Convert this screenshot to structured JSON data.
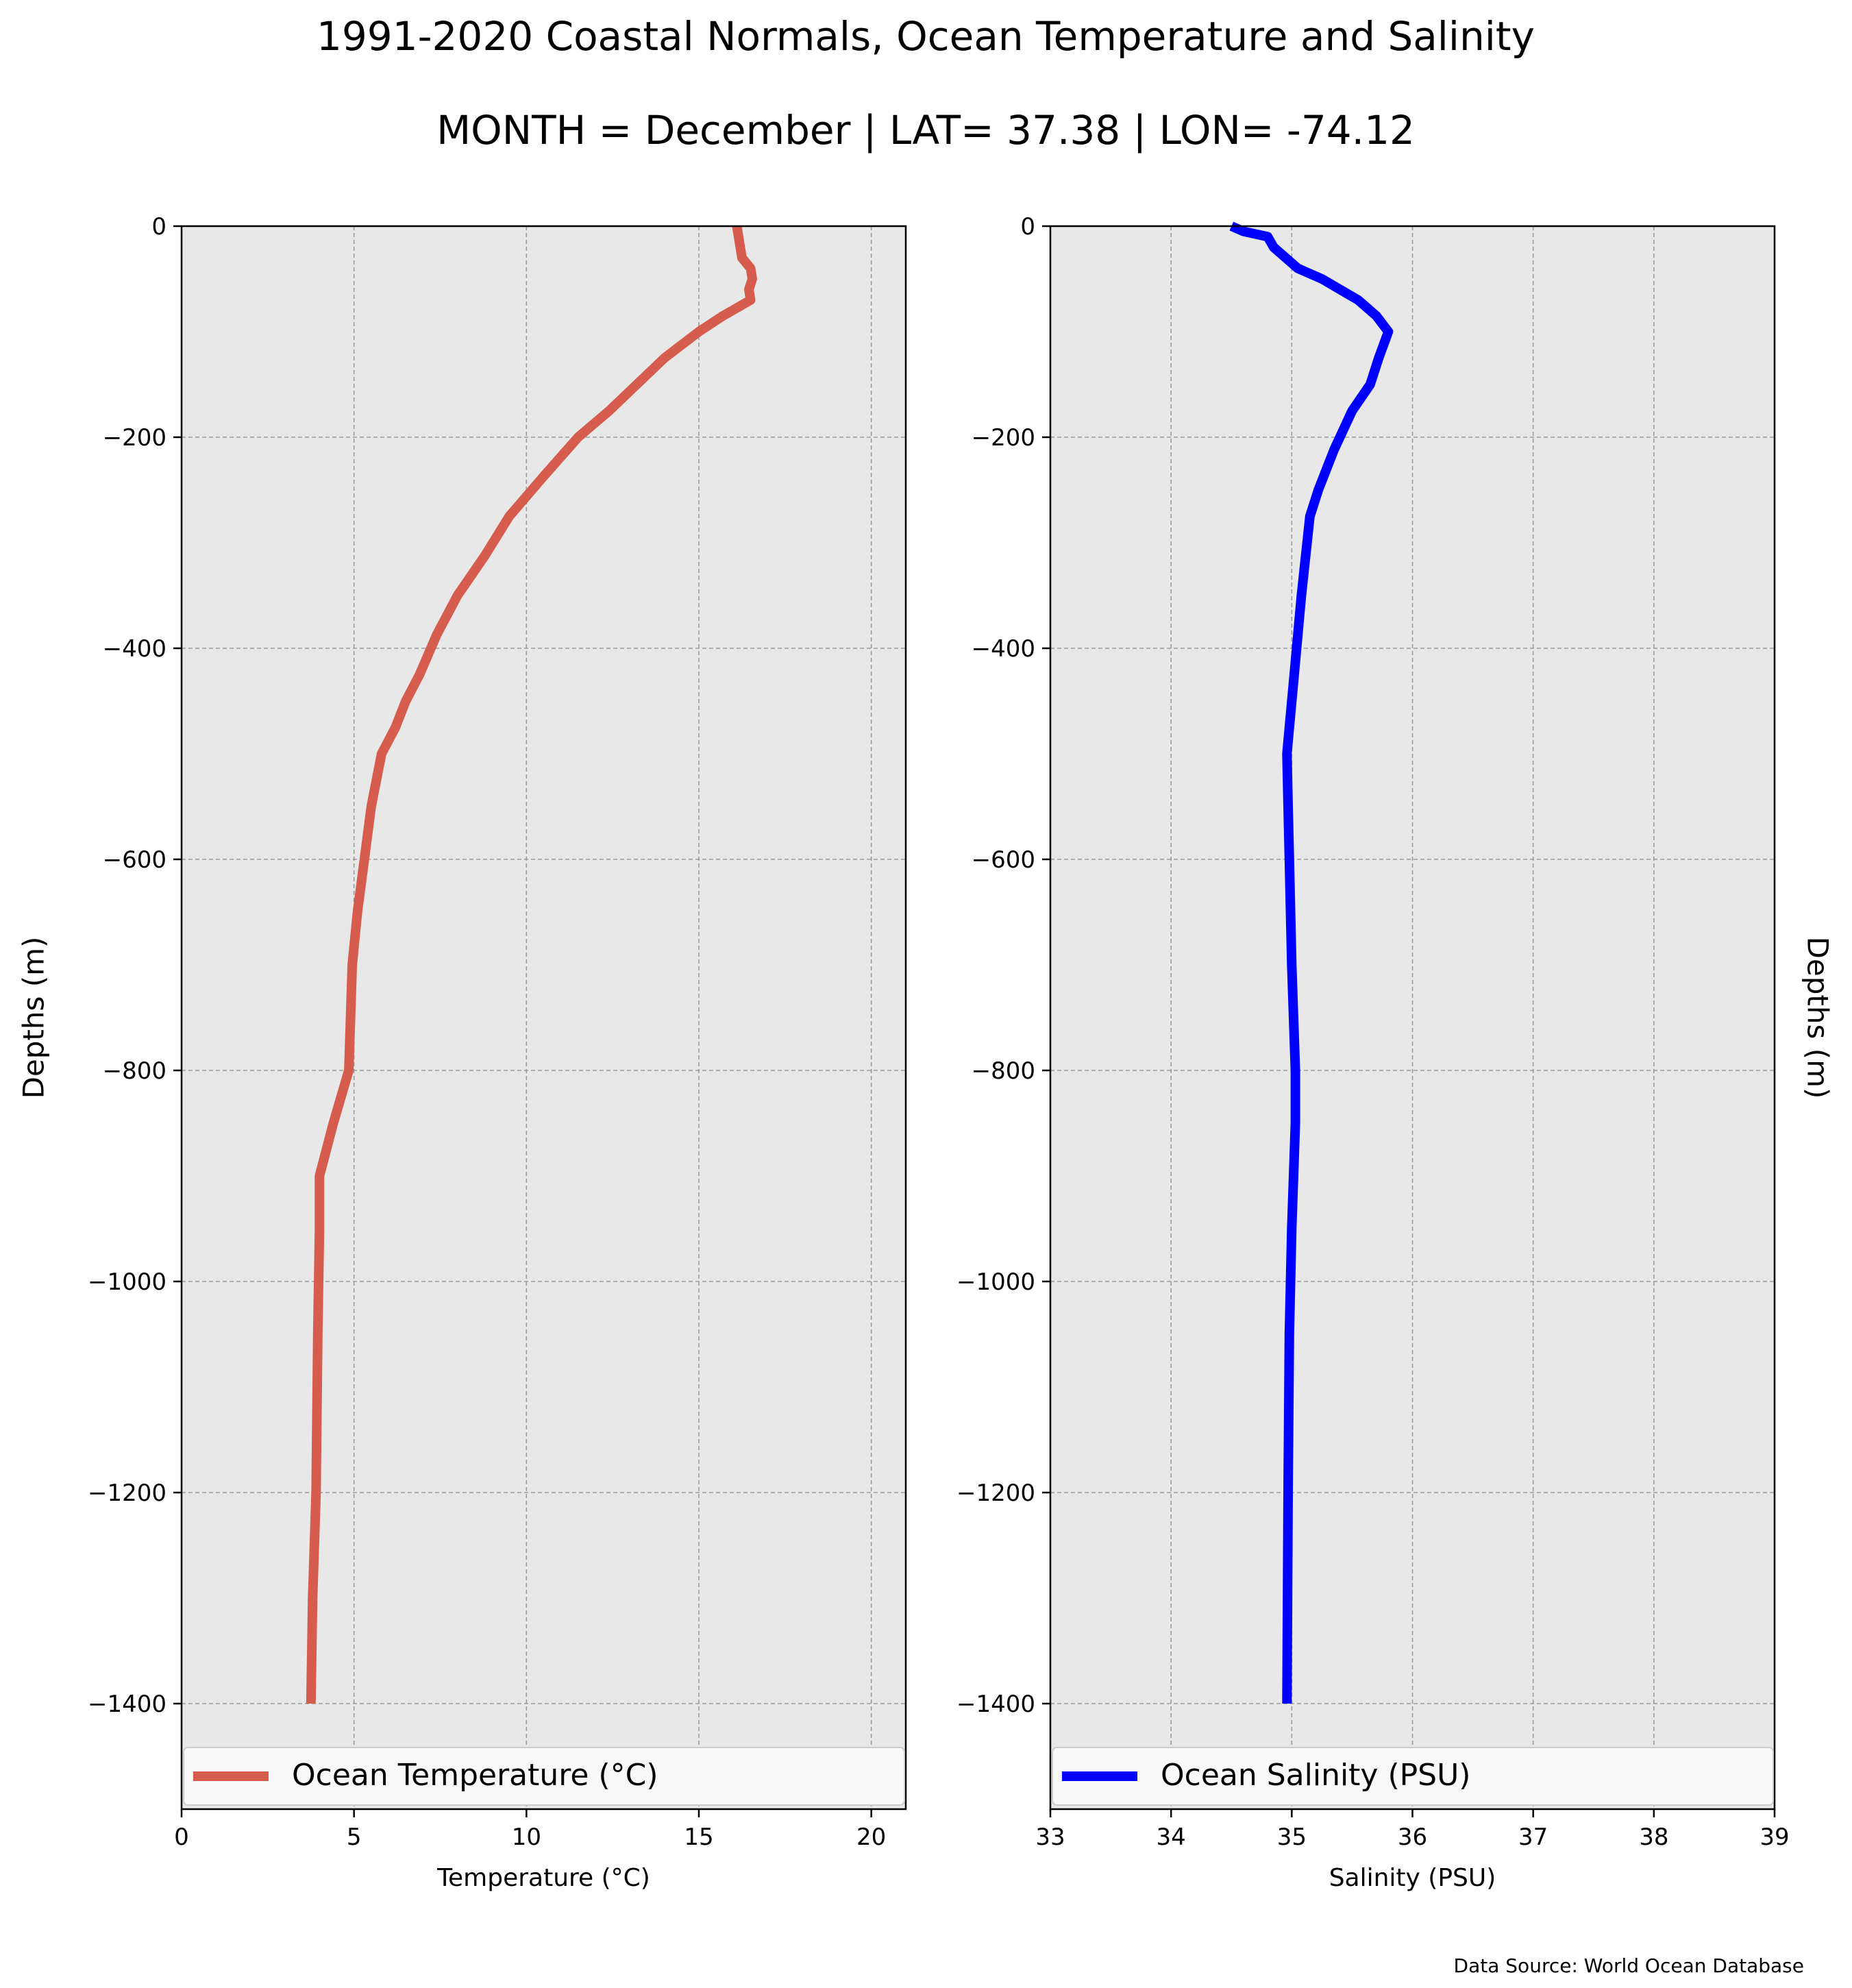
{
  "figure": {
    "title": "1991-2020 Coastal Normals, Ocean Temperature and Salinity",
    "subtitle": "MONTH = December | LAT= 37.38 | LON= -74.12",
    "source_note": "Data Source: World Ocean Database"
  },
  "colors": {
    "background": "#ffffff",
    "plot_background": "#e8e8e8",
    "grid": "#9a9a9a",
    "temperature_line": "#d65d4d",
    "salinity_line": "#0000ff"
  },
  "chart_data": [
    {
      "type": "line",
      "xlabel": "Temperature (°C)",
      "ylabel": "Depths (m)",
      "xlim": [
        0,
        21
      ],
      "ylim": [
        -1500,
        0
      ],
      "xticks": [
        0,
        5,
        10,
        15,
        20
      ],
      "yticks": [
        0,
        -200,
        -400,
        -600,
        -800,
        -1000,
        -1200,
        -1400
      ],
      "ytick_labels": [
        "0",
        "−200",
        "−400",
        "−600",
        "−800",
        "−1000",
        "−1200",
        "−1400"
      ],
      "grid": true,
      "legend": "bottom",
      "series": [
        {
          "name": "Ocean Temperature (°C)",
          "color": "#d65d4d",
          "x": [
            16.1,
            16.15,
            16.2,
            16.25,
            16.5,
            16.55,
            16.45,
            16.5,
            15.7,
            15.0,
            14.0,
            13.2,
            12.4,
            11.5,
            10.5,
            9.5,
            8.8,
            8.0,
            7.4,
            6.9,
            6.5,
            6.2,
            5.8,
            5.5,
            5.3,
            5.1,
            4.95,
            4.9,
            4.85,
            4.4,
            4.0,
            4.0,
            3.95,
            3.9,
            3.8,
            3.75
          ],
          "y": [
            0,
            -10,
            -20,
            -30,
            -40,
            -50,
            -60,
            -70,
            -85,
            -100,
            -125,
            -150,
            -175,
            -200,
            -237,
            -275,
            -312,
            -350,
            -387,
            -425,
            -450,
            -475,
            -500,
            -550,
            -600,
            -650,
            -700,
            -750,
            -800,
            -850,
            -900,
            -950,
            -1050,
            -1200,
            -1300,
            -1400
          ]
        }
      ]
    },
    {
      "type": "line",
      "xlabel": "Salinity (PSU)",
      "ylabel": "Depths (m)",
      "xlim": [
        33,
        39
      ],
      "ylim": [
        -1500,
        0
      ],
      "xticks": [
        33,
        34,
        35,
        36,
        37,
        38,
        39
      ],
      "yticks": [
        0,
        -200,
        -400,
        -600,
        -800,
        -1000,
        -1200,
        -1400
      ],
      "ytick_labels": [
        "0",
        "−200",
        "−400",
        "−600",
        "−800",
        "−1000",
        "−1200",
        "−1400"
      ],
      "grid": true,
      "legend": "bottom",
      "series": [
        {
          "name": "Ocean Salinity (PSU)",
          "color": "#0000ff",
          "x": [
            34.5,
            34.6,
            34.8,
            34.85,
            34.95,
            35.05,
            35.25,
            35.4,
            35.55,
            35.7,
            35.8,
            35.72,
            35.65,
            35.5,
            35.35,
            35.22,
            35.15,
            35.08,
            35.02,
            34.98,
            34.96,
            34.97,
            34.98,
            35.0,
            35.03,
            35.03,
            35.0,
            34.98,
            34.97,
            34.96
          ],
          "y": [
            0,
            -5,
            -10,
            -20,
            -30,
            -40,
            -50,
            -60,
            -70,
            -85,
            -100,
            -125,
            -150,
            -175,
            -212,
            -250,
            -275,
            -350,
            -425,
            -475,
            -500,
            -550,
            -600,
            -700,
            -800,
            -850,
            -950,
            -1050,
            -1200,
            -1400
          ]
        }
      ]
    }
  ]
}
